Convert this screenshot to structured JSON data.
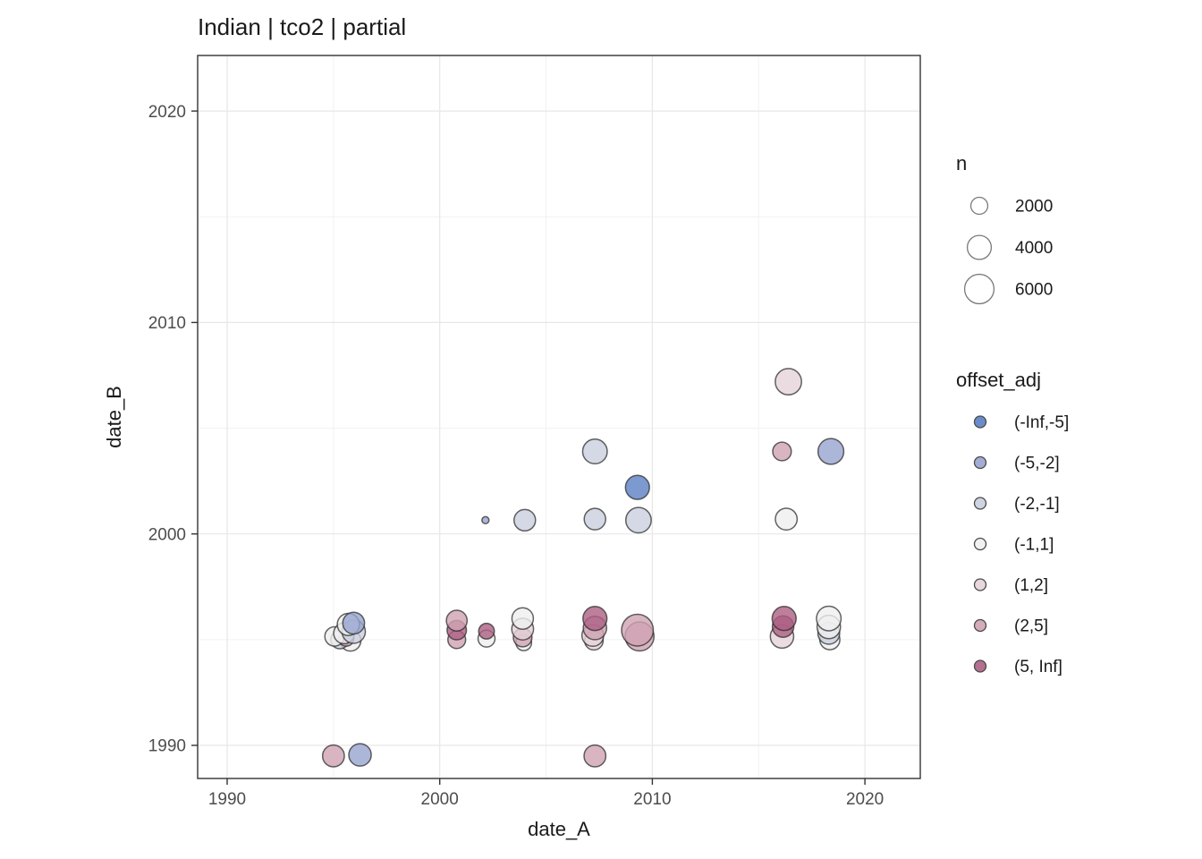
{
  "title": "Indian | tco2 | partial",
  "style": {
    "panel_border": "#333333",
    "grid_major": "#e7e7e7",
    "grid_minor": "#f2f2f2",
    "point_stroke": "#2f2f2f",
    "tick_color": "#333333",
    "legend_ring_stroke": "#7a7a7a",
    "legend_dot_stroke": "#4a4a4a"
  },
  "chart_data": {
    "type": "scatter",
    "title": "Indian | tco2 | partial",
    "xlabel": "date_A",
    "ylabel": "date_B",
    "xlim": [
      1988.5,
      2022.7
    ],
    "ylim": [
      1988.4,
      2022.6
    ],
    "x_ticks": [
      1990,
      2000,
      2010,
      2020
    ],
    "x_minor": [
      1995,
      2005,
      2015
    ],
    "y_ticks": [
      1990,
      2000,
      2010,
      2020
    ],
    "y_minor": [
      1995,
      2005,
      2015
    ],
    "grid": true,
    "legend_position": "right",
    "size_legend": {
      "title": "n",
      "values": [
        2000,
        4000,
        6000
      ]
    },
    "color_legend": {
      "title": "offset_adj",
      "categories": [
        "(-Inf,-5]",
        "(-5,-2]",
        "(-2,-1]",
        "(-1,1]",
        "(1,2]",
        "(2,5]",
        "(5, Inf]"
      ],
      "colors": {
        "(-Inf,-5]": "#5b7fc4",
        "(-5,-2]": "#97a4cf",
        "(-2,-1]": "#c9cfdf",
        "(-1,1]": "#efeff0",
        "(1,2]": "#e5d3d8",
        "(2,5]": "#d0a3b3",
        "(5, Inf]": "#ad5f83"
      }
    },
    "points": [
      {
        "x": 1995.05,
        "y": 1995.15,
        "n": 2600,
        "offset_adj": "(-1,1]"
      },
      {
        "x": 1995.3,
        "y": 1995.0,
        "n": 2300,
        "offset_adj": "(-2,-1]"
      },
      {
        "x": 1995.5,
        "y": 1995.3,
        "n": 3000,
        "offset_adj": "(-1,1]"
      },
      {
        "x": 1995.6,
        "y": 1995.05,
        "n": 1600,
        "offset_adj": "(2,5]"
      },
      {
        "x": 1995.8,
        "y": 1994.95,
        "n": 3000,
        "offset_adj": "(-1,1]"
      },
      {
        "x": 1995.7,
        "y": 1995.72,
        "n": 3400,
        "offset_adj": "(-1,1]"
      },
      {
        "x": 1995.95,
        "y": 1995.38,
        "n": 3800,
        "offset_adj": "(-2,-1]"
      },
      {
        "x": 1995.95,
        "y": 1995.78,
        "n": 3300,
        "offset_adj": "(-5,-2]"
      },
      {
        "x": 1995.0,
        "y": 1989.5,
        "n": 3300,
        "offset_adj": "(2,5]"
      },
      {
        "x": 1996.25,
        "y": 1989.55,
        "n": 3500,
        "offset_adj": "(-5,-2]"
      },
      {
        "x": 2007.3,
        "y": 1989.5,
        "n": 3300,
        "offset_adj": "(2,5]"
      },
      {
        "x": 2000.8,
        "y": 1995.0,
        "n": 2200,
        "offset_adj": "(2,5]"
      },
      {
        "x": 2000.8,
        "y": 1995.45,
        "n": 2600,
        "offset_adj": "(5, Inf]"
      },
      {
        "x": 2000.8,
        "y": 1995.9,
        "n": 3000,
        "offset_adj": "(2,5]"
      },
      {
        "x": 2002.2,
        "y": 1995.05,
        "n": 2000,
        "offset_adj": "(-1,1]"
      },
      {
        "x": 2002.2,
        "y": 1995.4,
        "n": 1700,
        "offset_adj": "(5, Inf]"
      },
      {
        "x": 2002.15,
        "y": 2000.65,
        "n": 350,
        "offset_adj": "(-5,-2]"
      },
      {
        "x": 2003.95,
        "y": 1994.85,
        "n": 1700,
        "offset_adj": "(-1,1]"
      },
      {
        "x": 2003.9,
        "y": 1995.1,
        "n": 2400,
        "offset_adj": "(2,5]"
      },
      {
        "x": 2003.9,
        "y": 1995.5,
        "n": 3300,
        "offset_adj": "(1,2]"
      },
      {
        "x": 2003.9,
        "y": 1996.0,
        "n": 3200,
        "offset_adj": "(-1,1]"
      },
      {
        "x": 2004.0,
        "y": 2000.65,
        "n": 3200,
        "offset_adj": "(-2,-1]"
      },
      {
        "x": 2007.25,
        "y": 1994.95,
        "n": 2400,
        "offset_adj": "(1,2]"
      },
      {
        "x": 2007.2,
        "y": 1995.2,
        "n": 3300,
        "offset_adj": "(1,2]"
      },
      {
        "x": 2007.3,
        "y": 1995.55,
        "n": 3800,
        "offset_adj": "(2,5]"
      },
      {
        "x": 2007.3,
        "y": 1996.0,
        "n": 4000,
        "offset_adj": "(5, Inf]"
      },
      {
        "x": 2007.3,
        "y": 2000.7,
        "n": 3200,
        "offset_adj": "(-2,-1]"
      },
      {
        "x": 2007.3,
        "y": 2003.9,
        "n": 4200,
        "offset_adj": "(-2,-1]"
      },
      {
        "x": 2009.4,
        "y": 1995.15,
        "n": 5800,
        "offset_adj": "(2,5]"
      },
      {
        "x": 2009.3,
        "y": 1995.45,
        "n": 7000,
        "offset_adj": "(2,5]"
      },
      {
        "x": 2009.35,
        "y": 2000.65,
        "n": 4500,
        "offset_adj": "(-2,-1]"
      },
      {
        "x": 2009.3,
        "y": 2002.2,
        "n": 4000,
        "offset_adj": "(-Inf,-5]"
      },
      {
        "x": 2016.1,
        "y": 1995.15,
        "n": 3800,
        "offset_adj": "(1,2]"
      },
      {
        "x": 2016.15,
        "y": 1995.62,
        "n": 3200,
        "offset_adj": "(5, Inf]"
      },
      {
        "x": 2016.2,
        "y": 1996.0,
        "n": 4000,
        "offset_adj": "(5, Inf]"
      },
      {
        "x": 2016.3,
        "y": 2000.7,
        "n": 3300,
        "offset_adj": "(-1,1]"
      },
      {
        "x": 2016.1,
        "y": 2003.9,
        "n": 2400,
        "offset_adj": "(2,5]"
      },
      {
        "x": 2016.4,
        "y": 2007.2,
        "n": 4800,
        "offset_adj": "(1,2]"
      },
      {
        "x": 2018.35,
        "y": 1995.0,
        "n": 2800,
        "offset_adj": "(-1,1]"
      },
      {
        "x": 2018.3,
        "y": 1995.3,
        "n": 3300,
        "offset_adj": "(-2,-1]"
      },
      {
        "x": 2018.3,
        "y": 1995.6,
        "n": 3800,
        "offset_adj": "(-1,1]"
      },
      {
        "x": 2018.3,
        "y": 1996.0,
        "n": 4200,
        "offset_adj": "(-1,1]"
      },
      {
        "x": 2018.4,
        "y": 2003.9,
        "n": 4600,
        "offset_adj": "(-5,-2]"
      }
    ]
  }
}
